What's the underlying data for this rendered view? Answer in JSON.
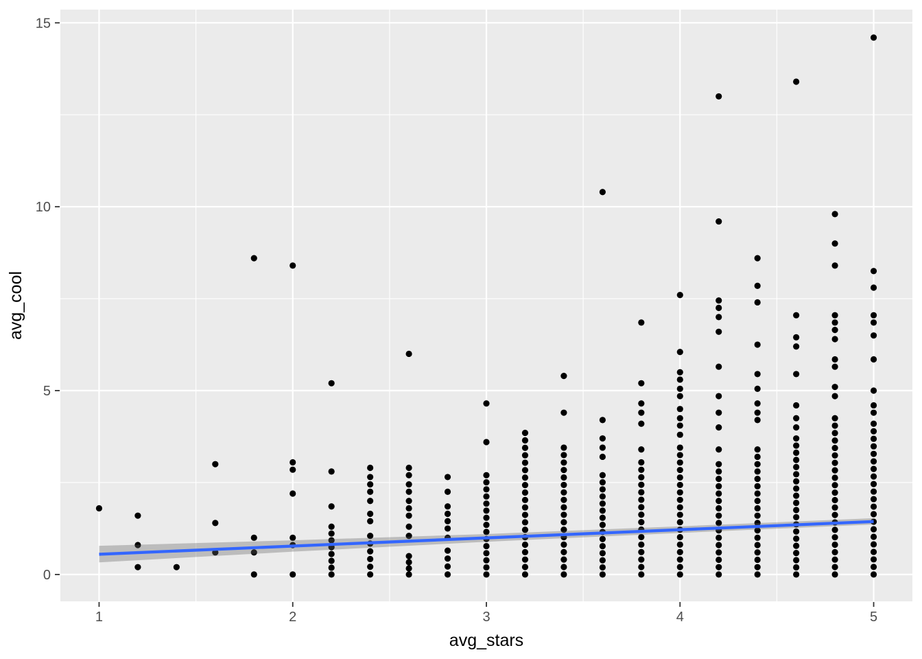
{
  "chart_data": {
    "type": "scatter",
    "title": "",
    "xlabel": "avg_stars",
    "ylabel": "avg_cool",
    "x_ticks": [
      1,
      2,
      3,
      4,
      5
    ],
    "y_ticks": [
      0,
      5,
      10,
      15
    ],
    "x_minor_gridlines": [
      1.5,
      2.5,
      3.5,
      4.5
    ],
    "y_minor_gridlines": [
      2.5,
      7.5,
      12.5
    ],
    "xlim": [
      0.8,
      5.2
    ],
    "ylim": [
      -0.73,
      15.36
    ],
    "grid": true,
    "legend": "none",
    "panel_bg_color": "#EBEBEB",
    "grid_color": "#FFFFFF",
    "point_color": "#000000",
    "tick_label_color": "#4D4D4D",
    "axis_title_color": "#000000",
    "tick_mark_color": "#333333",
    "columns": [
      {
        "x": 1.0,
        "run_top": null,
        "extras": [
          1.8
        ]
      },
      {
        "x": 1.2,
        "run_top": null,
        "extras": [
          0.2,
          0.8,
          1.6
        ]
      },
      {
        "x": 1.4,
        "run_top": null,
        "extras": [
          0.2
        ]
      },
      {
        "x": 1.6,
        "run_top": null,
        "extras": [
          0.6,
          1.4,
          3.0
        ]
      },
      {
        "x": 1.8,
        "run_top": null,
        "extras": [
          0.0,
          0.6,
          1.0,
          8.6
        ]
      },
      {
        "x": 2.0,
        "run_top": null,
        "extras": [
          0.0,
          0.8,
          1.0,
          2.2,
          2.85,
          3.05,
          8.4
        ]
      },
      {
        "x": 2.2,
        "run_top": 1.3,
        "extras": [
          1.85,
          2.8,
          5.2
        ]
      },
      {
        "x": 2.4,
        "run_top": 1.05,
        "extras": [
          1.45,
          1.65,
          2.0,
          2.25,
          2.45,
          2.65,
          2.9
        ]
      },
      {
        "x": 2.6,
        "run_top": 0.5,
        "extras": [
          1.05,
          1.3,
          1.6,
          1.8,
          2.0,
          2.25,
          2.45,
          2.7,
          2.9,
          6.0
        ]
      },
      {
        "x": 2.8,
        "run_top": 0.65,
        "extras": [
          1.0,
          1.25,
          1.45,
          1.65,
          1.85,
          2.25,
          2.65
        ]
      },
      {
        "x": 3.0,
        "run_top": 2.7,
        "extras": [
          3.6,
          4.65
        ]
      },
      {
        "x": 3.2,
        "run_top": 3.85,
        "extras": []
      },
      {
        "x": 3.4,
        "run_top": 3.45,
        "extras": [
          4.4,
          5.4
        ]
      },
      {
        "x": 3.6,
        "run_top": 2.7,
        "extras": [
          3.2,
          3.45,
          3.7,
          4.2,
          10.4
        ]
      },
      {
        "x": 3.8,
        "run_top": 3.05,
        "extras": [
          3.4,
          4.1,
          4.4,
          4.65,
          5.2,
          6.85
        ]
      },
      {
        "x": 4.0,
        "run_top": 3.45,
        "extras": [
          3.8,
          4.05,
          4.25,
          4.5,
          4.85,
          5.05,
          5.3,
          5.5,
          6.05,
          7.6
        ]
      },
      {
        "x": 4.2,
        "run_top": 3.0,
        "extras": [
          3.4,
          4.0,
          4.4,
          4.85,
          5.65,
          6.6,
          7.0,
          7.25,
          7.45,
          9.6,
          13.0
        ]
      },
      {
        "x": 4.4,
        "run_top": 3.4,
        "extras": [
          4.2,
          4.4,
          4.65,
          5.05,
          5.45,
          6.25,
          7.4,
          7.85,
          8.6
        ]
      },
      {
        "x": 4.6,
        "run_top": 3.7,
        "extras": [
          4.0,
          4.25,
          4.6,
          5.45,
          6.2,
          6.45,
          7.05,
          13.4
        ]
      },
      {
        "x": 4.8,
        "run_top": 4.25,
        "extras": [
          4.85,
          5.1,
          5.65,
          5.85,
          6.4,
          6.65,
          6.85,
          7.05,
          8.4,
          9.0,
          9.8
        ]
      },
      {
        "x": 5.0,
        "run_top": 4.1,
        "extras": [
          4.4,
          4.6,
          5.0,
          5.85,
          6.5,
          6.85,
          7.05,
          7.8,
          8.25,
          14.6
        ]
      }
    ],
    "run_step": 0.2,
    "smooth_line": {
      "color": "#3366FF",
      "x": [
        1,
        5
      ],
      "y": [
        0.55,
        1.44
      ]
    },
    "confidence_band": {
      "color": "#646464",
      "alpha": 0.35,
      "x": [
        1.0,
        2.0,
        3.0,
        4.0,
        5.0
      ],
      "upper": [
        0.78,
        0.93,
        1.1,
        1.31,
        1.53
      ],
      "lower": [
        0.33,
        0.62,
        0.89,
        1.13,
        1.36
      ]
    }
  }
}
